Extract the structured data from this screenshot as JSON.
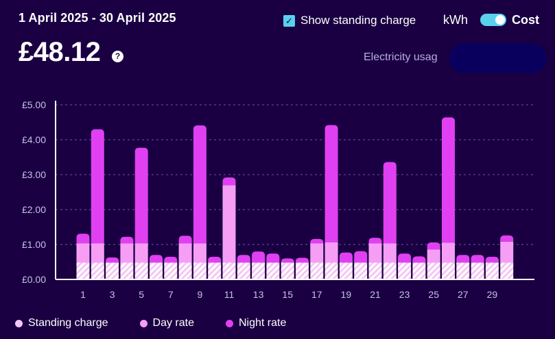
{
  "header": {
    "date_range": "1 April 2025 - 30 April 2025",
    "total": "£48.12",
    "help_glyph": "?",
    "show_standing_charge_label": "Show standing charge",
    "show_standing_charge_checked": true,
    "check_glyph": "✓",
    "unit_kwh_label": "kWh",
    "unit_cost_label": "Cost",
    "usage_label": "Electricity usag"
  },
  "colors": {
    "background": "#1a0042",
    "standing": "#f5c6f5",
    "day": "#f69ef6",
    "night": "#e040f2",
    "toggle": "#5ad0ef"
  },
  "legend": [
    {
      "label": "Standing charge",
      "color": "#f5c6f5"
    },
    {
      "label": "Day rate",
      "color": "#f69ef6"
    },
    {
      "label": "Night rate",
      "color": "#e040f2"
    }
  ],
  "chart_data": {
    "type": "bar",
    "stacked": true,
    "title": "",
    "xlabel": "",
    "ylabel": "",
    "ylim": [
      0,
      5
    ],
    "y_ticks": [
      "£0.00",
      "£1.00",
      "£2.00",
      "£3.00",
      "£4.00",
      "£5.00"
    ],
    "categories": [
      "1",
      "2",
      "3",
      "4",
      "5",
      "6",
      "7",
      "8",
      "9",
      "10",
      "11",
      "12",
      "13",
      "14",
      "15",
      "16",
      "17",
      "18",
      "19",
      "20",
      "21",
      "22",
      "23",
      "24",
      "25",
      "26",
      "27",
      "28",
      "29",
      "30"
    ],
    "x_tick_labels": [
      "1",
      "3",
      "5",
      "7",
      "9",
      "11",
      "13",
      "15",
      "17",
      "19",
      "21",
      "23",
      "25",
      "27",
      "29"
    ],
    "series": [
      {
        "name": "Standing charge",
        "values": [
          0.48,
          0.48,
          0.48,
          0.48,
          0.48,
          0.48,
          0.48,
          0.48,
          0.48,
          0.48,
          0.48,
          0.48,
          0.48,
          0.48,
          0.48,
          0.48,
          0.48,
          0.48,
          0.48,
          0.48,
          0.48,
          0.48,
          0.48,
          0.48,
          0.48,
          0.48,
          0.48,
          0.48,
          0.48,
          0.48
        ]
      },
      {
        "name": "Day rate",
        "values": [
          0.55,
          0.55,
          0.0,
          0.55,
          0.55,
          0.0,
          0.0,
          0.55,
          0.55,
          0.0,
          2.22,
          0.0,
          0.0,
          0.0,
          0.0,
          0.0,
          0.55,
          0.58,
          0.0,
          0.0,
          0.55,
          0.55,
          0.0,
          0.0,
          0.38,
          0.57,
          0.0,
          0.0,
          0.0,
          0.6
        ]
      },
      {
        "name": "Night rate",
        "values": [
          0.28,
          3.27,
          0.15,
          0.19,
          2.74,
          0.22,
          0.17,
          0.22,
          3.38,
          0.17,
          0.22,
          0.22,
          0.32,
          0.26,
          0.12,
          0.14,
          0.13,
          3.36,
          0.29,
          0.33,
          0.16,
          2.33,
          0.26,
          0.18,
          0.2,
          3.59,
          0.22,
          0.22,
          0.17,
          0.18
        ]
      }
    ]
  }
}
